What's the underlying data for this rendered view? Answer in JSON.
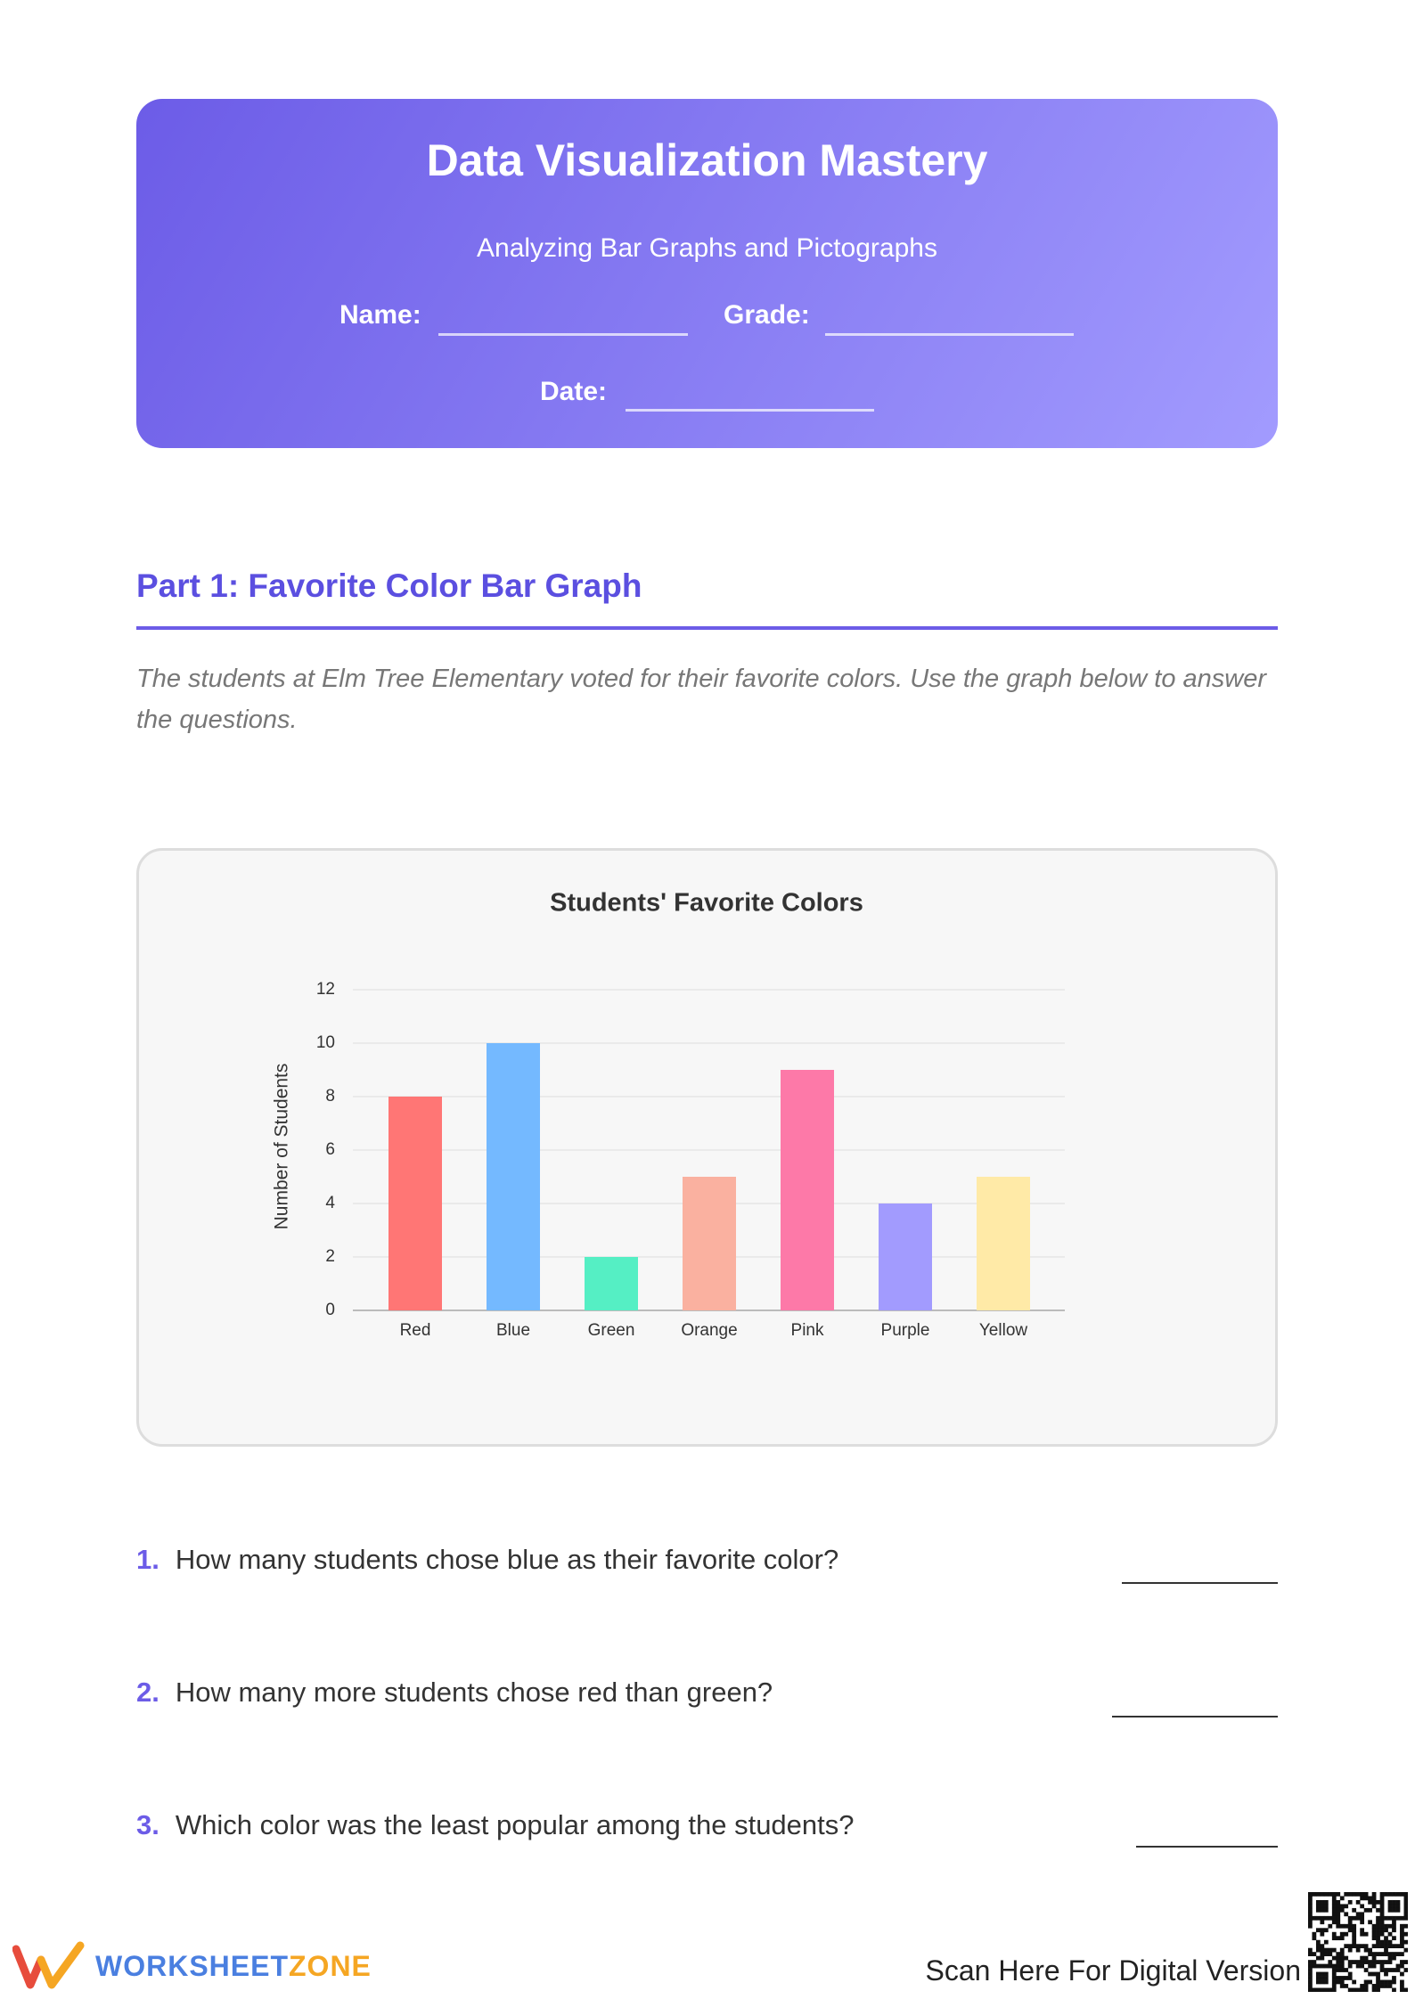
{
  "header": {
    "title": "Data Visualization Mastery",
    "subtitle": "Analyzing Bar Graphs and Pictographs",
    "fields": [
      {
        "label": "Name:"
      },
      {
        "label": "Grade:"
      },
      {
        "label": "Date:"
      }
    ]
  },
  "section": {
    "heading": "Part 1: Favorite Color Bar Graph",
    "intro": "The students at Elm Tree Elementary voted for their favorite colors. Use the graph below to answer the questions."
  },
  "chart_data": {
    "type": "bar",
    "title": "Students' Favorite Colors",
    "y_label": "Number of Students",
    "categories": [
      "Red",
      "Blue",
      "Green",
      "Orange",
      "Pink",
      "Purple",
      "Yellow"
    ],
    "values": [
      8,
      10,
      2,
      5,
      9,
      4,
      5
    ],
    "colors": [
      "#ff7675",
      "#74b9ff",
      "#55efc4",
      "#fab1a0",
      "#fd79a8",
      "#a29bfe",
      "#ffeaa7"
    ],
    "ylim": [
      0,
      12
    ],
    "yticks": [
      0,
      2,
      4,
      6,
      8,
      10,
      12
    ],
    "grid": true
  },
  "questions": [
    {
      "number": "1.",
      "text": "How many students chose blue as their favorite color?"
    },
    {
      "number": "2.",
      "text": "How many more students chose red than green?"
    },
    {
      "number": "3.",
      "text": "Which color was the least popular among the students?"
    }
  ],
  "footer": {
    "brand_first": "WORKSHEET",
    "brand_second": "ZONE",
    "scan": "Scan Here For Digital Version"
  }
}
